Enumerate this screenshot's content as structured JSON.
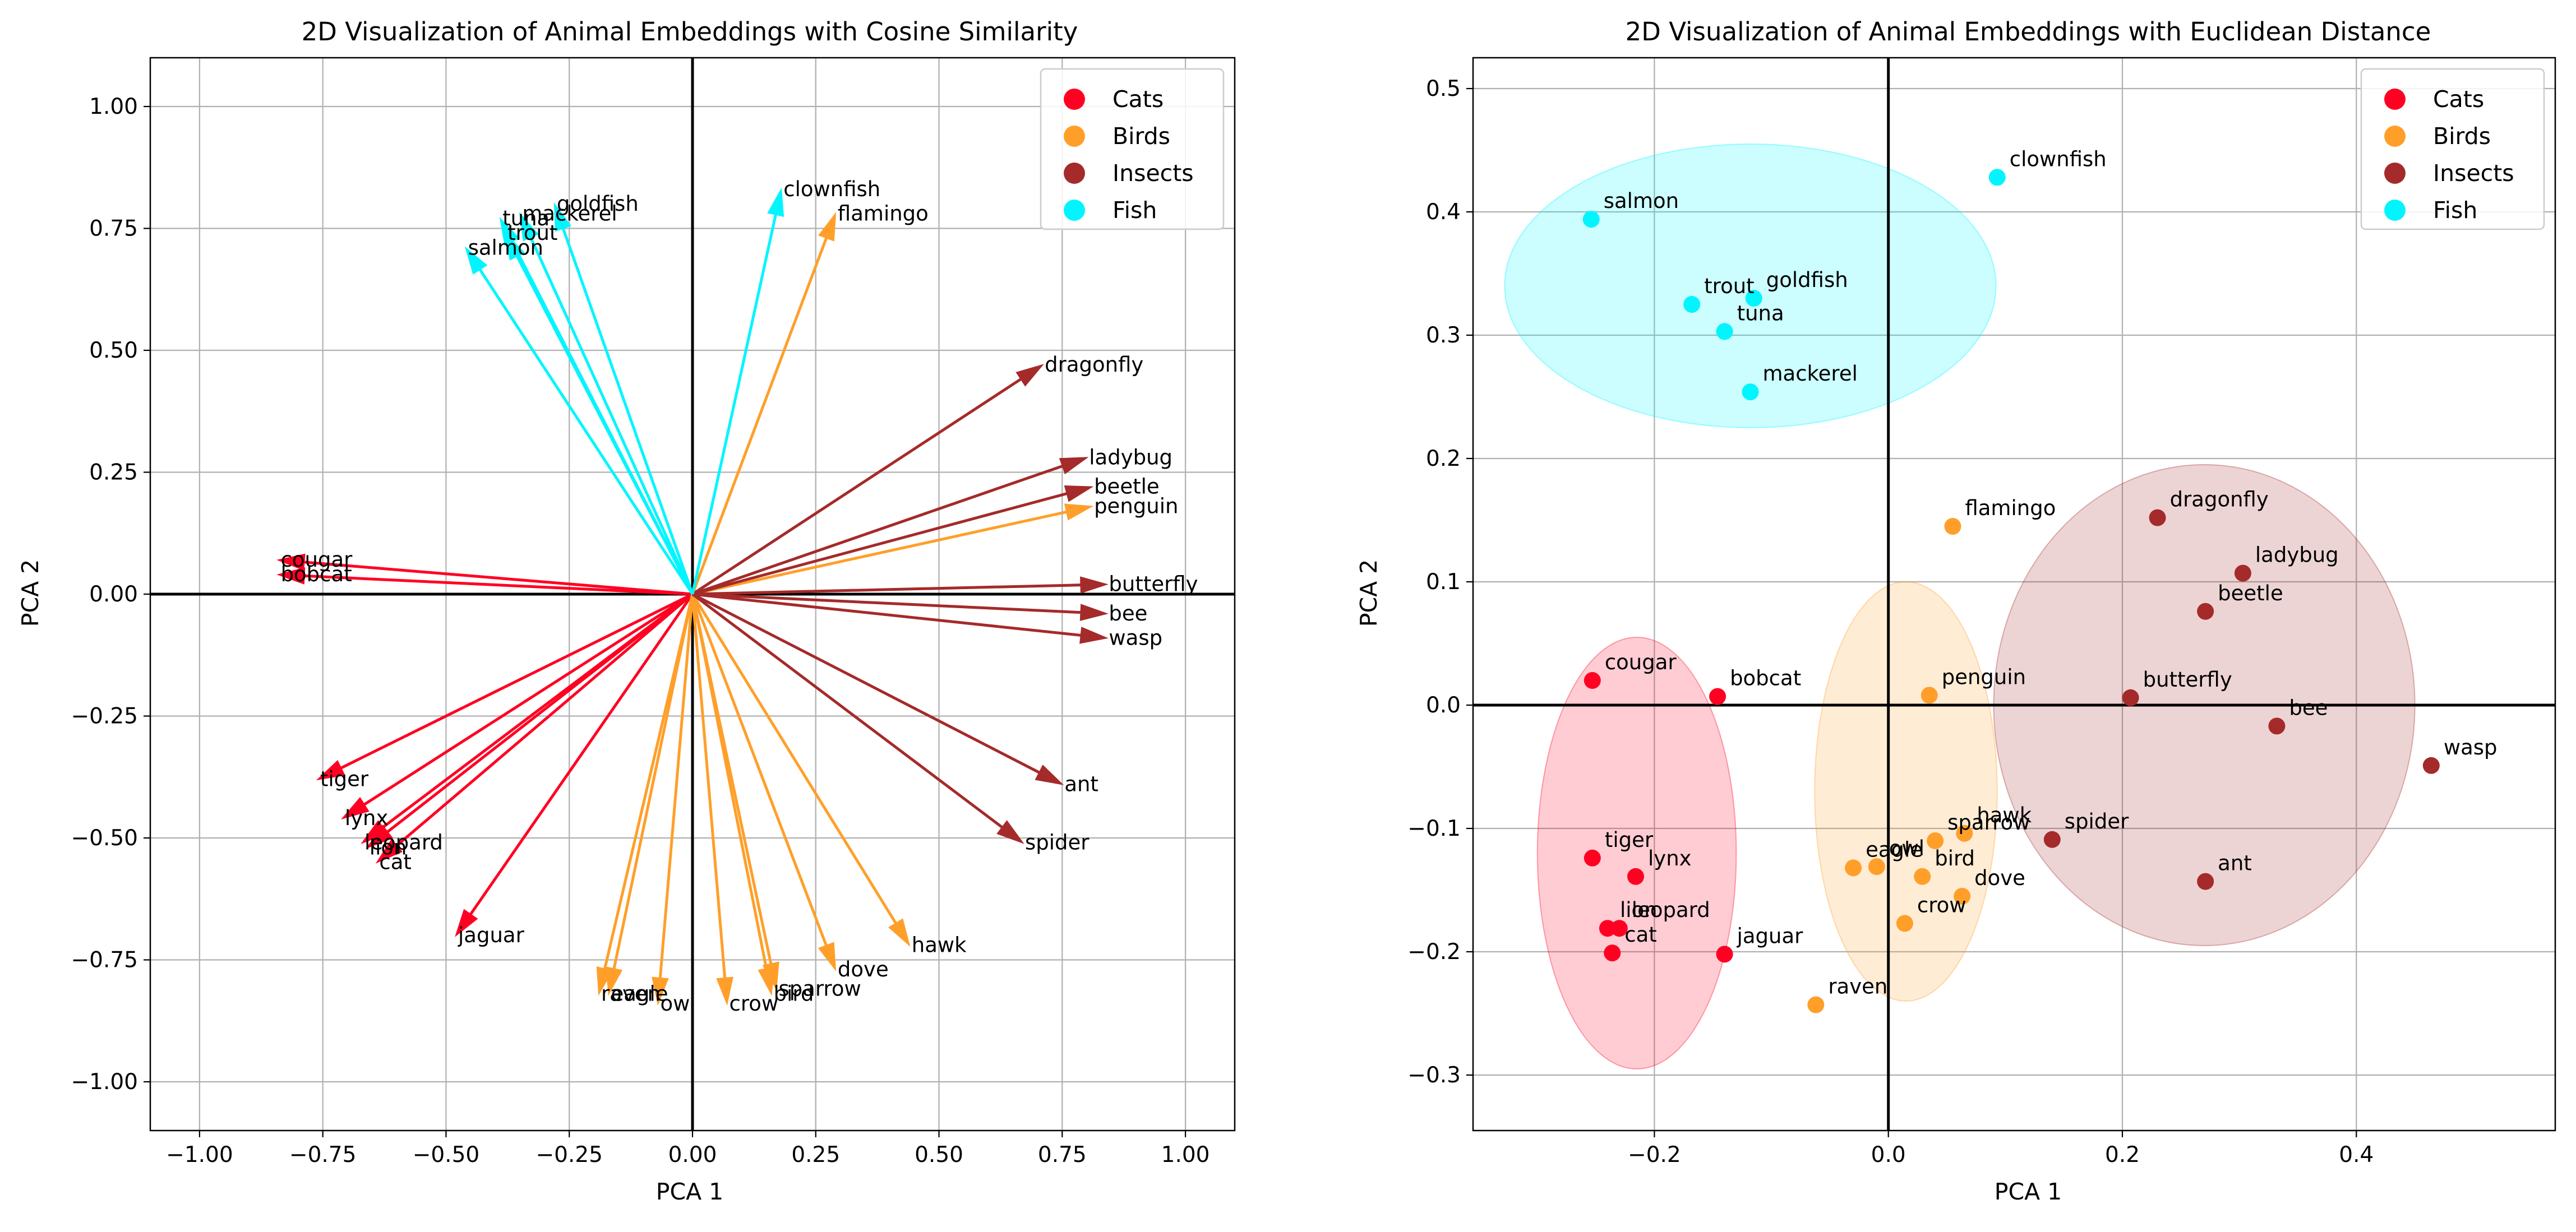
{
  "colors": {
    "Cats": "#ff0022",
    "Birds": "#ff9f2a",
    "Insects": "#a52a2a",
    "Fish": "#00f5ff"
  },
  "chart_data": [
    {
      "type": "quiver",
      "title": "2D Visualization of Animal Embeddings with Cosine Similarity",
      "xlabel": "PCA 1",
      "ylabel": "PCA 2",
      "xlim": [
        -1.1,
        1.1
      ],
      "ylim": [
        -1.1,
        1.1
      ],
      "xticks": [
        -1.0,
        -0.75,
        -0.5,
        -0.25,
        0.0,
        0.25,
        0.5,
        0.75,
        1.0
      ],
      "yticks": [
        -1.0,
        -0.75,
        -0.5,
        -0.25,
        0.0,
        0.25,
        0.5,
        0.75,
        1.0
      ],
      "xtick_labels": [
        "−1.00",
        "−0.75",
        "−0.50",
        "−0.25",
        "0.00",
        "0.25",
        "0.50",
        "0.75",
        "1.00"
      ],
      "ytick_labels": [
        "−1.00",
        "−0.75",
        "−0.50",
        "−0.25",
        "0.00",
        "0.25",
        "0.50",
        "0.75",
        "1.00"
      ],
      "grid": true,
      "legend": {
        "placement": "top-right",
        "entries": [
          "Cats",
          "Birds",
          "Insects",
          "Fish"
        ]
      },
      "points": [
        {
          "label": "cougar",
          "group": "Cats",
          "x": -0.84,
          "y": 0.07
        },
        {
          "label": "bobcat",
          "group": "Cats",
          "x": -0.84,
          "y": 0.04
        },
        {
          "label": "tiger",
          "group": "Cats",
          "x": -0.76,
          "y": -0.38
        },
        {
          "label": "lynx",
          "group": "Cats",
          "x": -0.71,
          "y": -0.46
        },
        {
          "label": "leopard",
          "group": "Cats",
          "x": -0.67,
          "y": -0.51
        },
        {
          "label": "lion",
          "group": "Cats",
          "x": -0.66,
          "y": -0.52
        },
        {
          "label": "cat",
          "group": "Cats",
          "x": -0.64,
          "y": -0.55
        },
        {
          "label": "jaguar",
          "group": "Cats",
          "x": -0.48,
          "y": -0.7
        },
        {
          "label": "flamingo",
          "group": "Birds",
          "x": 0.29,
          "y": 0.78
        },
        {
          "label": "penguin",
          "group": "Birds",
          "x": 0.81,
          "y": 0.18
        },
        {
          "label": "hawk",
          "group": "Birds",
          "x": 0.44,
          "y": -0.72
        },
        {
          "label": "dove",
          "group": "Birds",
          "x": 0.29,
          "y": -0.77
        },
        {
          "label": "sparrow",
          "group": "Birds",
          "x": 0.17,
          "y": -0.81
        },
        {
          "label": "bird",
          "group": "Birds",
          "x": 0.16,
          "y": -0.82
        },
        {
          "label": "crow",
          "group": "Birds",
          "x": 0.07,
          "y": -0.84
        },
        {
          "label": "owl",
          "group": "Birds",
          "x": -0.07,
          "y": -0.84
        },
        {
          "label": "eagle",
          "group": "Birds",
          "x": -0.17,
          "y": -0.82
        },
        {
          "label": "raven",
          "group": "Birds",
          "x": -0.19,
          "y": -0.82
        },
        {
          "label": "dragonfly",
          "group": "Insects",
          "x": 0.71,
          "y": 0.47
        },
        {
          "label": "ladybug",
          "group": "Insects",
          "x": 0.8,
          "y": 0.28
        },
        {
          "label": "beetle",
          "group": "Insects",
          "x": 0.81,
          "y": 0.22
        },
        {
          "label": "butterfly",
          "group": "Insects",
          "x": 0.84,
          "y": 0.02
        },
        {
          "label": "bee",
          "group": "Insects",
          "x": 0.84,
          "y": -0.04
        },
        {
          "label": "wasp",
          "group": "Insects",
          "x": 0.84,
          "y": -0.09
        },
        {
          "label": "ant",
          "group": "Insects",
          "x": 0.75,
          "y": -0.39
        },
        {
          "label": "spider",
          "group": "Insects",
          "x": 0.67,
          "y": -0.51
        },
        {
          "label": "clownfish",
          "group": "Fish",
          "x": 0.18,
          "y": 0.83
        },
        {
          "label": "goldfish",
          "group": "Fish",
          "x": -0.28,
          "y": 0.8
        },
        {
          "label": "mackerel",
          "group": "Fish",
          "x": -0.35,
          "y": 0.78
        },
        {
          "label": "tuna",
          "group": "Fish",
          "x": -0.39,
          "y": 0.77
        },
        {
          "label": "trout",
          "group": "Fish",
          "x": -0.38,
          "y": 0.74
        },
        {
          "label": "salmon",
          "group": "Fish",
          "x": -0.46,
          "y": 0.71
        }
      ]
    },
    {
      "type": "scatter",
      "title": "2D Visualization of Animal Embeddings with Euclidean Distance",
      "xlabel": "PCA 1",
      "ylabel": "PCA 2",
      "xlim": [
        -0.355,
        0.57
      ],
      "ylim": [
        -0.345,
        0.525
      ],
      "xticks": [
        -0.2,
        0.0,
        0.2,
        0.4
      ],
      "yticks": [
        -0.3,
        -0.2,
        -0.1,
        0.0,
        0.1,
        0.2,
        0.3,
        0.4,
        0.5
      ],
      "xtick_labels": [
        "−0.2",
        "0.0",
        "0.2",
        "0.4"
      ],
      "ytick_labels": [
        "−0.3",
        "−0.2",
        "−0.1",
        "0.0",
        "0.1",
        "0.2",
        "0.3",
        "0.4",
        "0.5"
      ],
      "grid": true,
      "legend": {
        "placement": "top-right",
        "entries": [
          "Cats",
          "Birds",
          "Insects",
          "Fish"
        ]
      },
      "cluster_ellipses": [
        {
          "group": "Cats",
          "cx": -0.215,
          "cy": -0.12,
          "rx": 0.085,
          "ry": 0.175
        },
        {
          "group": "Birds",
          "cx": 0.015,
          "cy": -0.07,
          "rx": 0.078,
          "ry": 0.17
        },
        {
          "group": "Insects",
          "cx": 0.27,
          "cy": 0.0,
          "rx": 0.18,
          "ry": 0.195
        },
        {
          "group": "Fish",
          "cx": -0.118,
          "cy": 0.34,
          "rx": 0.21,
          "ry": 0.115
        }
      ],
      "points": [
        {
          "label": "cougar",
          "group": "Cats",
          "x": -0.253,
          "y": 0.02
        },
        {
          "label": "bobcat",
          "group": "Cats",
          "x": -0.146,
          "y": 0.007
        },
        {
          "label": "tiger",
          "group": "Cats",
          "x": -0.253,
          "y": -0.124
        },
        {
          "label": "lynx",
          "group": "Cats",
          "x": -0.216,
          "y": -0.139
        },
        {
          "label": "lion",
          "group": "Cats",
          "x": -0.24,
          "y": -0.181
        },
        {
          "label": "leopard",
          "group": "Cats",
          "x": -0.23,
          "y": -0.181
        },
        {
          "label": "cat",
          "group": "Cats",
          "x": -0.236,
          "y": -0.201
        },
        {
          "label": "jaguar",
          "group": "Cats",
          "x": -0.14,
          "y": -0.202
        },
        {
          "label": "flamingo",
          "group": "Birds",
          "x": 0.055,
          "y": 0.145
        },
        {
          "label": "penguin",
          "group": "Birds",
          "x": 0.035,
          "y": 0.008
        },
        {
          "label": "hawk",
          "group": "Birds",
          "x": 0.065,
          "y": -0.104
        },
        {
          "label": "sparrow",
          "group": "Birds",
          "x": 0.04,
          "y": -0.11
        },
        {
          "label": "eagle",
          "group": "Birds",
          "x": -0.03,
          "y": -0.132
        },
        {
          "label": "owl",
          "group": "Birds",
          "x": -0.01,
          "y": -0.131
        },
        {
          "label": "bird",
          "group": "Birds",
          "x": 0.029,
          "y": -0.139
        },
        {
          "label": "dove",
          "group": "Birds",
          "x": 0.063,
          "y": -0.155
        },
        {
          "label": "crow",
          "group": "Birds",
          "x": 0.014,
          "y": -0.177
        },
        {
          "label": "raven",
          "group": "Birds",
          "x": -0.062,
          "y": -0.243
        },
        {
          "label": "dragonfly",
          "group": "Insects",
          "x": 0.23,
          "y": 0.152
        },
        {
          "label": "ladybug",
          "group": "Insects",
          "x": 0.303,
          "y": 0.107
        },
        {
          "label": "beetle",
          "group": "Insects",
          "x": 0.271,
          "y": 0.076
        },
        {
          "label": "butterfly",
          "group": "Insects",
          "x": 0.207,
          "y": 0.006
        },
        {
          "label": "bee",
          "group": "Insects",
          "x": 0.332,
          "y": -0.017
        },
        {
          "label": "wasp",
          "group": "Insects",
          "x": 0.464,
          "y": -0.049
        },
        {
          "label": "spider",
          "group": "Insects",
          "x": 0.14,
          "y": -0.109
        },
        {
          "label": "ant",
          "group": "Insects",
          "x": 0.271,
          "y": -0.143
        },
        {
          "label": "clownfish",
          "group": "Fish",
          "x": 0.093,
          "y": 0.428
        },
        {
          "label": "salmon",
          "group": "Fish",
          "x": -0.254,
          "y": 0.394
        },
        {
          "label": "trout",
          "group": "Fish",
          "x": -0.168,
          "y": 0.325
        },
        {
          "label": "goldfish",
          "group": "Fish",
          "x": -0.115,
          "y": 0.33
        },
        {
          "label": "tuna",
          "group": "Fish",
          "x": -0.14,
          "y": 0.303
        },
        {
          "label": "mackerel",
          "group": "Fish",
          "x": -0.118,
          "y": 0.254
        }
      ]
    }
  ]
}
